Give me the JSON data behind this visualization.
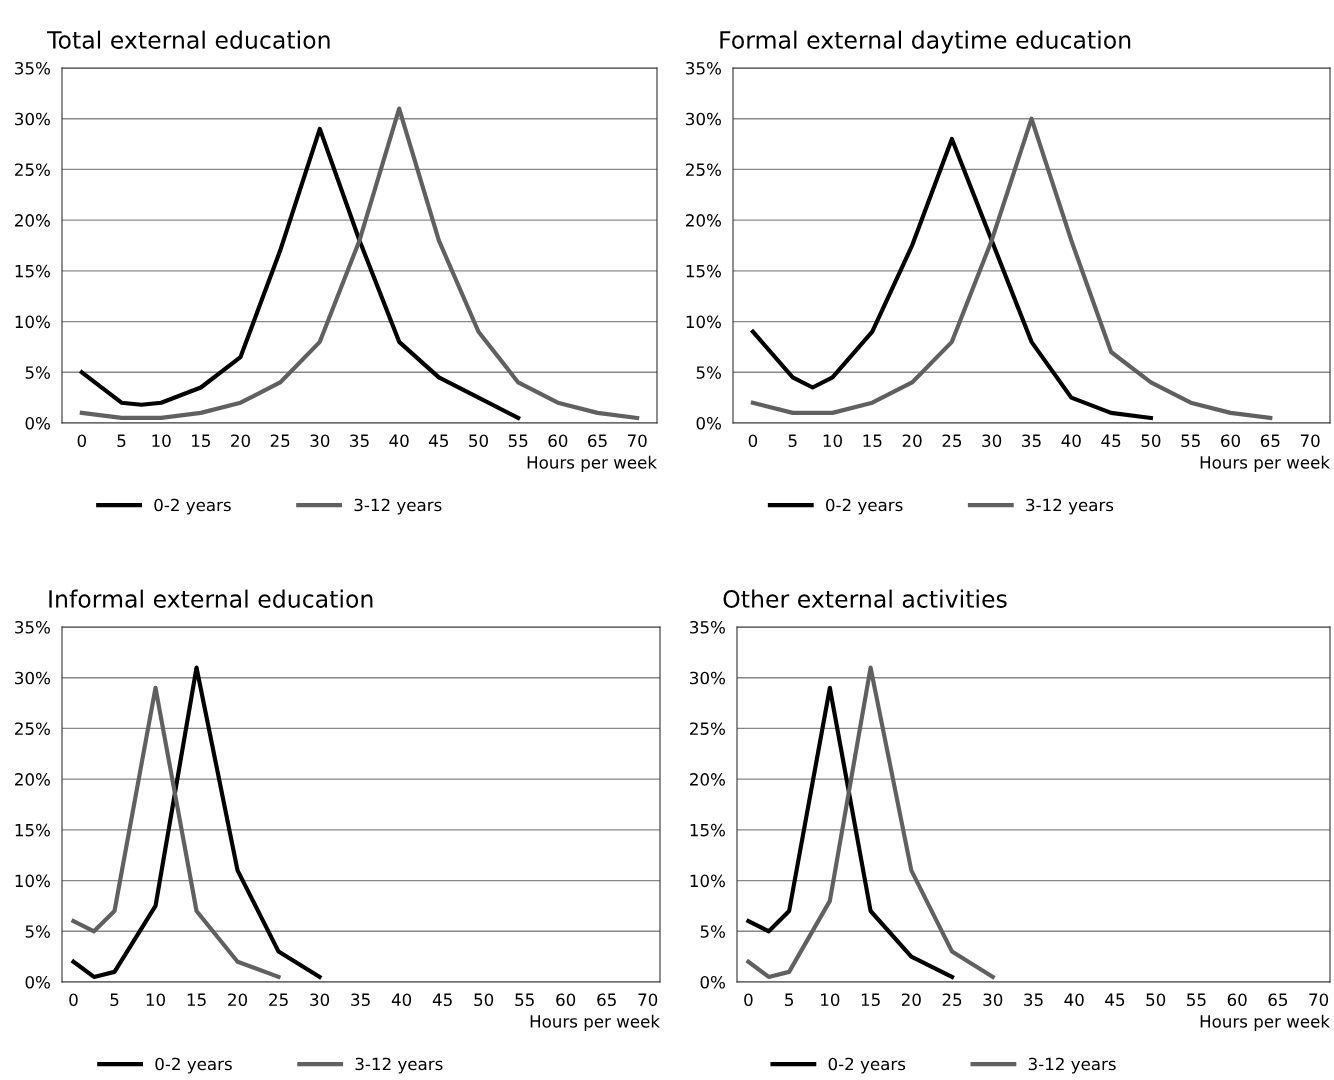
{
  "chart_data": [
    {
      "type": "line",
      "title": "Total external education",
      "xlabel": "Hours per week",
      "xlim": [
        -2.5,
        72.5
      ],
      "xticks": [
        0,
        5,
        10,
        15,
        20,
        25,
        30,
        35,
        40,
        45,
        50,
        55,
        60,
        65,
        70
      ],
      "ylim": [
        0,
        35
      ],
      "yticks": [
        {
          "value": 0,
          "label": "0%"
        },
        {
          "value": 5,
          "label": "5%"
        },
        {
          "value": 10,
          "label": "10%"
        },
        {
          "value": 15,
          "label": "15%"
        },
        {
          "value": 20,
          "label": "20%"
        },
        {
          "value": 25,
          "label": "25%"
        },
        {
          "value": 30,
          "label": "30%"
        },
        {
          "value": 35,
          "label": "35%"
        }
      ],
      "grid": "y",
      "legend": "bottom",
      "series": [
        {
          "name": "0-2 years",
          "color": "#000000",
          "x": [
            0,
            5,
            7.5,
            10,
            15,
            20,
            25,
            30,
            35,
            40,
            45,
            50,
            55
          ],
          "values": [
            5,
            2,
            1.8,
            2,
            3.5,
            6.5,
            17,
            29,
            18,
            8,
            4.5,
            2.5,
            0.5
          ]
        },
        {
          "name": "3-12 years",
          "color": "#606060",
          "x": [
            0,
            5,
            10,
            15,
            20,
            25,
            30,
            35,
            40,
            45,
            50,
            55,
            60,
            65,
            70
          ],
          "values": [
            1,
            0.5,
            0.5,
            1,
            2,
            4,
            8,
            18,
            31,
            18,
            9,
            4,
            2,
            1,
            0.5
          ]
        }
      ]
    },
    {
      "type": "line",
      "title": "Formal external daytime education",
      "xlabel": "Hours per week",
      "xlim": [
        -2.5,
        72.5
      ],
      "xticks": [
        0,
        5,
        10,
        15,
        20,
        25,
        30,
        35,
        40,
        45,
        50,
        55,
        60,
        65,
        70
      ],
      "ylim": [
        0,
        35
      ],
      "yticks": [
        {
          "value": 0,
          "label": "0%"
        },
        {
          "value": 5,
          "label": "5%"
        },
        {
          "value": 10,
          "label": "10%"
        },
        {
          "value": 15,
          "label": "15%"
        },
        {
          "value": 20,
          "label": "20%"
        },
        {
          "value": 25,
          "label": "25%"
        },
        {
          "value": 30,
          "label": "30%"
        },
        {
          "value": 35,
          "label": "35%"
        }
      ],
      "grid": "y",
      "legend": "bottom",
      "series": [
        {
          "name": "0-2 years",
          "color": "#000000",
          "x": [
            0,
            5,
            7.5,
            10,
            15,
            20,
            25,
            30,
            35,
            40,
            45,
            50
          ],
          "values": [
            9,
            4.5,
            3.5,
            4.5,
            9,
            17.5,
            28,
            18,
            8,
            2.5,
            1,
            0.5
          ]
        },
        {
          "name": "3-12 years",
          "color": "#606060",
          "x": [
            0,
            5,
            10,
            15,
            20,
            25,
            30,
            35,
            40,
            45,
            50,
            55,
            60,
            65
          ],
          "values": [
            2,
            1,
            1,
            2,
            4,
            8,
            18,
            30,
            18,
            7,
            4,
            2,
            1,
            0.5
          ]
        }
      ]
    },
    {
      "type": "line",
      "title": "Informal external education",
      "xlabel": "Hours per week",
      "xlim": [
        -1.4,
        71.5
      ],
      "xticks": [
        0,
        5,
        10,
        15,
        20,
        25,
        30,
        35,
        40,
        45,
        50,
        55,
        60,
        65,
        70
      ],
      "ylim": [
        0,
        35
      ],
      "yticks": [
        {
          "value": 0,
          "label": "0%"
        },
        {
          "value": 5,
          "label": "5%"
        },
        {
          "value": 10,
          "label": "10%"
        },
        {
          "value": 15,
          "label": "15%"
        },
        {
          "value": 20,
          "label": "20%"
        },
        {
          "value": 25,
          "label": "25%"
        },
        {
          "value": 30,
          "label": "30%"
        },
        {
          "value": 35,
          "label": "35%"
        }
      ],
      "grid": "y",
      "legend": "bottom",
      "series": [
        {
          "name": "0-2 years",
          "color": "#000000",
          "x": [
            0,
            2.5,
            5,
            10,
            15,
            20,
            25,
            30
          ],
          "values": [
            2,
            0.5,
            1,
            7.5,
            31,
            11,
            3,
            0.5
          ]
        },
        {
          "name": "3-12 years",
          "color": "#606060",
          "x": [
            0,
            2.5,
            5,
            10,
            15,
            20,
            25
          ],
          "values": [
            6,
            5,
            7,
            29,
            7,
            2,
            0.5
          ]
        }
      ]
    },
    {
      "type": "line",
      "title": "Other external activities",
      "xlabel": "Hours per week",
      "xlim": [
        -1.4,
        71.4
      ],
      "xticks": [
        0,
        5,
        10,
        15,
        20,
        25,
        30,
        35,
        40,
        45,
        50,
        55,
        60,
        65,
        70
      ],
      "ylim": [
        0,
        35
      ],
      "yticks": [
        {
          "value": 0,
          "label": "0%"
        },
        {
          "value": 5,
          "label": "5%"
        },
        {
          "value": 10,
          "label": "10%"
        },
        {
          "value": 15,
          "label": "15%"
        },
        {
          "value": 20,
          "label": "20%"
        },
        {
          "value": 25,
          "label": "25%"
        },
        {
          "value": 30,
          "label": "30%"
        },
        {
          "value": 35,
          "label": "35%"
        }
      ],
      "grid": "y",
      "legend": "bottom",
      "series": [
        {
          "name": "0-2 years",
          "color": "#000000",
          "x": [
            0,
            2.5,
            5,
            10,
            15,
            20,
            25
          ],
          "values": [
            6,
            5,
            7,
            29,
            7,
            2.5,
            0.5
          ]
        },
        {
          "name": "3-12 years",
          "color": "#606060",
          "x": [
            0,
            2.5,
            5,
            10,
            15,
            20,
            25,
            30
          ],
          "values": [
            2,
            0.5,
            1,
            8,
            31,
            11,
            3,
            0.5
          ]
        }
      ]
    }
  ]
}
